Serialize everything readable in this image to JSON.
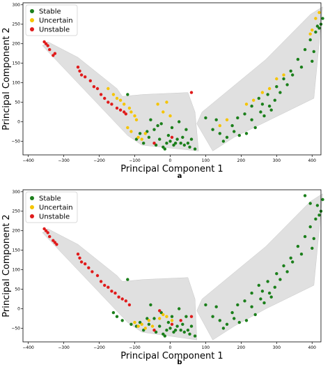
{
  "figure": {
    "panel_labels": [
      "a",
      "b"
    ]
  },
  "colors": {
    "Stable": "#1b7f1b",
    "Uncertain": "#f5c400",
    "Unstable": "#e01b1b",
    "hull": "#e0e0e0"
  },
  "chart_data": [
    {
      "type": "scatter",
      "panel": "a",
      "xlabel": "Principal Component 1",
      "ylabel": "Principal Component 2",
      "xlim": [
        -415,
        425
      ],
      "ylim": [
        -85,
        305
      ],
      "xticks": [
        -400,
        -300,
        -200,
        -100,
        0,
        100,
        200,
        300,
        400
      ],
      "yticks": [
        -50,
        0,
        50,
        100,
        150,
        200,
        250,
        300
      ],
      "legend": {
        "position": "top-left",
        "entries": [
          "Stable",
          "Uncertain",
          "Unstable"
        ]
      },
      "hull_left": [
        [
          -345,
          205
        ],
        [
          -260,
          165
        ],
        [
          -150,
          85
        ],
        [
          -135,
          65
        ],
        [
          -75,
          70
        ],
        [
          50,
          75
        ],
        [
          70,
          25
        ],
        [
          80,
          -75
        ],
        [
          -80,
          -60
        ],
        [
          -120,
          -35
        ],
        [
          -360,
          195
        ]
      ],
      "hull_right": [
        [
          75,
          -5
        ],
        [
          120,
          -75
        ],
        [
          180,
          -40
        ],
        [
          270,
          0
        ],
        [
          405,
          60
        ],
        [
          430,
          295
        ],
        [
          395,
          275
        ],
        [
          270,
          160
        ],
        [
          90,
          25
        ]
      ],
      "series": [
        {
          "name": "Stable",
          "points": [
            [
              -120,
              70
            ],
            [
              -85,
              -30
            ],
            [
              -75,
              -55
            ],
            [
              -60,
              -40
            ],
            [
              -45,
              -20
            ],
            [
              -40,
              -60
            ],
            [
              -35,
              -10
            ],
            [
              -30,
              -45
            ],
            [
              -20,
              -65
            ],
            [
              -10,
              -55
            ],
            [
              0,
              -50
            ],
            [
              10,
              -60
            ],
            [
              20,
              -45
            ],
            [
              30,
              -55
            ],
            [
              40,
              -60
            ],
            [
              55,
              -65
            ],
            [
              70,
              -70
            ],
            [
              -95,
              -45
            ],
            [
              -55,
              5
            ],
            [
              -25,
              -5
            ],
            [
              5,
              -15
            ],
            [
              25,
              0
            ],
            [
              45,
              -20
            ],
            [
              -15,
              -70
            ],
            [
              15,
              -55
            ],
            [
              35,
              -40
            ],
            [
              60,
              -45
            ],
            [
              -65,
              -25
            ],
            [
              -5,
              -35
            ],
            [
              50,
              -55
            ],
            [
              100,
              10
            ],
            [
              120,
              -20
            ],
            [
              140,
              -30
            ],
            [
              160,
              -40
            ],
            [
              175,
              -10
            ],
            [
              190,
              10
            ],
            [
              210,
              20
            ],
            [
              230,
              40
            ],
            [
              250,
              60
            ],
            [
              260,
              45
            ],
            [
              275,
              70
            ],
            [
              300,
              90
            ],
            [
              320,
              110
            ],
            [
              340,
              130
            ],
            [
              360,
              160
            ],
            [
              380,
              185
            ],
            [
              395,
              210
            ],
            [
              410,
              230
            ],
            [
              420,
              240
            ],
            [
              405,
              180
            ],
            [
              280,
              40
            ],
            [
              310,
              75
            ],
            [
              345,
              120
            ],
            [
              215,
              -30
            ],
            [
              240,
              -15
            ],
            [
              265,
              15
            ],
            [
              285,
              30
            ],
            [
              150,
              -50
            ],
            [
              195,
              -35
            ],
            [
              330,
              95
            ],
            [
              370,
              140
            ],
            [
              400,
              155
            ],
            [
              425,
              250
            ],
            [
              430,
              265
            ],
            [
              415,
              245
            ],
            [
              295,
              55
            ],
            [
              255,
              25
            ],
            [
              230,
              5
            ],
            [
              180,
              -25
            ],
            [
              130,
              5
            ]
          ]
        },
        {
          "name": "Uncertain",
          "points": [
            [
              -175,
              85
            ],
            [
              -160,
              70
            ],
            [
              -150,
              60
            ],
            [
              -140,
              55
            ],
            [
              -130,
              45
            ],
            [
              -115,
              35
            ],
            [
              -110,
              25
            ],
            [
              -100,
              15
            ],
            [
              -95,
              5
            ],
            [
              -120,
              -15
            ],
            [
              -110,
              -25
            ],
            [
              -90,
              -40
            ],
            [
              -80,
              -45
            ],
            [
              -70,
              -30
            ],
            [
              -35,
              45
            ],
            [
              -20,
              25
            ],
            [
              0,
              15
            ],
            [
              -10,
              50
            ],
            [
              420,
              280
            ],
            [
              410,
              265
            ],
            [
              400,
              235
            ],
            [
              395,
              225
            ],
            [
              215,
              45
            ],
            [
              235,
              55
            ],
            [
              260,
              75
            ],
            [
              280,
              85
            ],
            [
              300,
              110
            ],
            [
              320,
              120
            ],
            [
              160,
              5
            ],
            [
              140,
              -10
            ]
          ]
        },
        {
          "name": "Unstable",
          "points": [
            [
              -355,
              205
            ],
            [
              -350,
              200
            ],
            [
              -345,
              195
            ],
            [
              -340,
              185
            ],
            [
              -330,
              170
            ],
            [
              -325,
              175
            ],
            [
              -260,
              140
            ],
            [
              -255,
              130
            ],
            [
              -250,
              120
            ],
            [
              -240,
              115
            ],
            [
              -225,
              105
            ],
            [
              -215,
              90
            ],
            [
              -205,
              85
            ],
            [
              -195,
              70
            ],
            [
              -185,
              60
            ],
            [
              -175,
              50
            ],
            [
              -165,
              45
            ],
            [
              -150,
              35
            ],
            [
              -140,
              30
            ],
            [
              -130,
              25
            ],
            [
              -125,
              20
            ],
            [
              -45,
              -55
            ],
            [
              5,
              -40
            ],
            [
              60,
              75
            ]
          ]
        }
      ]
    },
    {
      "type": "scatter",
      "panel": "b",
      "xlabel": "Principal Component 1",
      "ylabel": "Principal Component 2",
      "xlim": [
        -415,
        425
      ],
      "ylim": [
        -85,
        305
      ],
      "xticks": [
        -400,
        -300,
        -200,
        -100,
        0,
        100,
        200,
        300,
        400
      ],
      "yticks": [
        -50,
        0,
        50,
        100,
        150,
        200,
        250,
        300
      ],
      "legend": {
        "position": "top-left",
        "entries": [
          "Stable",
          "Uncertain",
          "Unstable"
        ]
      },
      "hull_left": [
        [
          -345,
          205
        ],
        [
          -260,
          165
        ],
        [
          -150,
          85
        ],
        [
          -135,
          70
        ],
        [
          -75,
          75
        ],
        [
          50,
          80
        ],
        [
          70,
          25
        ],
        [
          75,
          -80
        ],
        [
          -80,
          -60
        ],
        [
          -120,
          -35
        ],
        [
          -360,
          195
        ]
      ],
      "hull_right": [
        [
          75,
          -5
        ],
        [
          120,
          -80
        ],
        [
          180,
          -45
        ],
        [
          270,
          0
        ],
        [
          405,
          60
        ],
        [
          430,
          295
        ],
        [
          395,
          275
        ],
        [
          270,
          160
        ],
        [
          90,
          25
        ]
      ],
      "series": [
        {
          "name": "Stable",
          "points": [
            [
              -120,
              75
            ],
            [
              -85,
              -35
            ],
            [
              -75,
              -55
            ],
            [
              -60,
              -40
            ],
            [
              -45,
              -25
            ],
            [
              -40,
              -60
            ],
            [
              -30,
              -45
            ],
            [
              -20,
              -65
            ],
            [
              -10,
              -55
            ],
            [
              0,
              -50
            ],
            [
              10,
              -60
            ],
            [
              20,
              -45
            ],
            [
              30,
              -55
            ],
            [
              40,
              -60
            ],
            [
              55,
              -65
            ],
            [
              70,
              -70
            ],
            [
              -95,
              -45
            ],
            [
              -55,
              10
            ],
            [
              -25,
              -10
            ],
            [
              5,
              -20
            ],
            [
              25,
              0
            ],
            [
              45,
              -20
            ],
            [
              -15,
              -70
            ],
            [
              15,
              -55
            ],
            [
              35,
              -40
            ],
            [
              60,
              -45
            ],
            [
              -65,
              -25
            ],
            [
              -5,
              -35
            ],
            [
              50,
              -55
            ],
            [
              -135,
              -30
            ],
            [
              -150,
              -20
            ],
            [
              -160,
              -10
            ],
            [
              -110,
              -40
            ],
            [
              100,
              10
            ],
            [
              120,
              -20
            ],
            [
              140,
              -30
            ],
            [
              160,
              -40
            ],
            [
              175,
              -10
            ],
            [
              190,
              10
            ],
            [
              210,
              20
            ],
            [
              230,
              40
            ],
            [
              250,
              60
            ],
            [
              260,
              45
            ],
            [
              275,
              70
            ],
            [
              300,
              90
            ],
            [
              320,
              110
            ],
            [
              340,
              130
            ],
            [
              360,
              160
            ],
            [
              380,
              185
            ],
            [
              395,
              210
            ],
            [
              410,
              230
            ],
            [
              420,
              240
            ],
            [
              405,
              180
            ],
            [
              280,
              40
            ],
            [
              310,
              75
            ],
            [
              345,
              120
            ],
            [
              215,
              -30
            ],
            [
              240,
              -15
            ],
            [
              265,
              15
            ],
            [
              285,
              30
            ],
            [
              150,
              -50
            ],
            [
              195,
              -35
            ],
            [
              330,
              95
            ],
            [
              370,
              140
            ],
            [
              400,
              155
            ],
            [
              425,
              250
            ],
            [
              430,
              280
            ],
            [
              415,
              265
            ],
            [
              295,
              55
            ],
            [
              255,
              25
            ],
            [
              230,
              5
            ],
            [
              180,
              -25
            ],
            [
              130,
              5
            ],
            [
              380,
              290
            ],
            [
              395,
              270
            ]
          ]
        },
        {
          "name": "Uncertain",
          "points": [
            [
              -100,
              -35
            ],
            [
              -90,
              -45
            ],
            [
              -80,
              -40
            ],
            [
              -70,
              -50
            ],
            [
              -60,
              -30
            ],
            [
              -50,
              -45
            ],
            [
              -30,
              -25
            ],
            [
              -20,
              -15
            ],
            [
              -10,
              -20
            ],
            [
              5,
              -30
            ]
          ]
        },
        {
          "name": "Unstable",
          "points": [
            [
              -355,
              205
            ],
            [
              -350,
              200
            ],
            [
              -345,
              195
            ],
            [
              -340,
              185
            ],
            [
              -330,
              175
            ],
            [
              -325,
              170
            ],
            [
              -320,
              165
            ],
            [
              -260,
              140
            ],
            [
              -255,
              130
            ],
            [
              -250,
              120
            ],
            [
              -240,
              115
            ],
            [
              -230,
              105
            ],
            [
              -220,
              95
            ],
            [
              -205,
              85
            ],
            [
              -195,
              70
            ],
            [
              -185,
              60
            ],
            [
              -175,
              55
            ],
            [
              -165,
              45
            ],
            [
              -155,
              40
            ],
            [
              -145,
              30
            ],
            [
              -135,
              25
            ],
            [
              -125,
              20
            ],
            [
              -115,
              10
            ],
            [
              -45,
              -55
            ],
            [
              -30,
              -5
            ],
            [
              5,
              -40
            ],
            [
              30,
              -30
            ],
            [
              60,
              -20
            ]
          ]
        }
      ]
    }
  ]
}
